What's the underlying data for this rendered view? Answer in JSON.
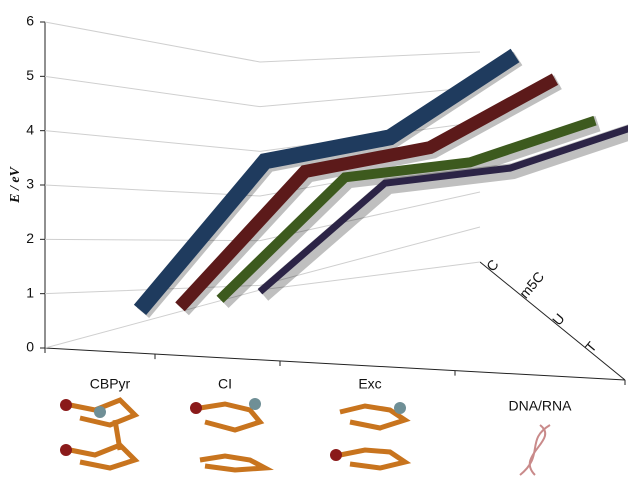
{
  "chart_data": {
    "type": "ribbon3d",
    "y_label": "E / eV",
    "categories": [
      "CBPyr",
      "CI",
      "Exc",
      "DNA/RNA"
    ],
    "series": [
      {
        "name": "C",
        "color": "#1f3b5e",
        "values": [
          0.9,
          3.9,
          4.1,
          5.6
        ]
      },
      {
        "name": "m5C",
        "color": "#5c1a1a",
        "values": [
          0.7,
          3.4,
          3.6,
          4.8
        ]
      },
      {
        "name": "U",
        "color": "#3d5a1e",
        "values": [
          0.6,
          3.0,
          3.0,
          3.6
        ]
      },
      {
        "name": "T",
        "color": "#2c2446",
        "values": [
          0.5,
          2.6,
          2.6,
          3.2
        ]
      }
    ],
    "ylim": [
      0,
      6
    ],
    "yticks": [
      0,
      1,
      2,
      3,
      4,
      5,
      6
    ],
    "grid": true
  }
}
